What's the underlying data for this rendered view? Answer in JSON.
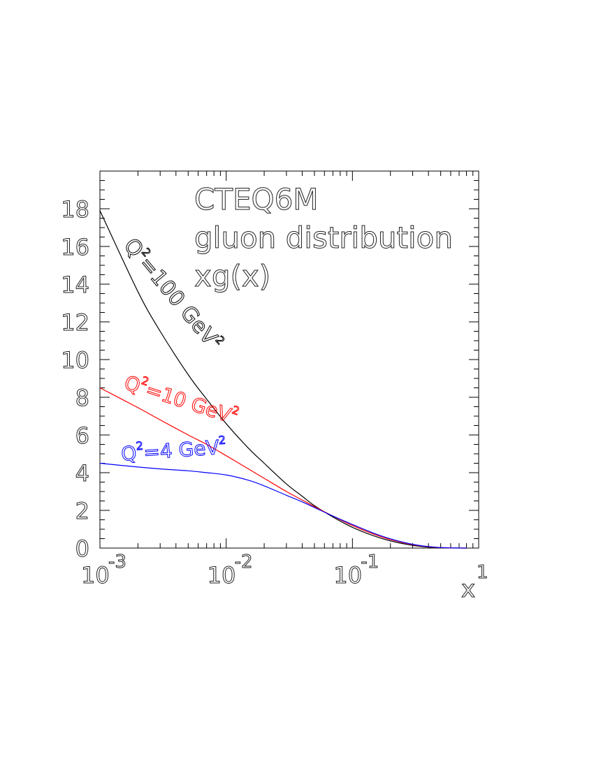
{
  "chart_data": {
    "type": "line",
    "title_lines": [
      "CTEQ6M",
      "gluon distribution",
      "xg(x)"
    ],
    "xlabel": "x",
    "ylabel": "",
    "x_scale": "log",
    "xlim": [
      0.001,
      1
    ],
    "ylim": [
      0,
      20
    ],
    "grid": false,
    "legend": "none",
    "x_tick_labels": [
      {
        "x": 0.001,
        "base": "10",
        "exp": "-3"
      },
      {
        "x": 0.01,
        "base": "10",
        "exp": "-2"
      },
      {
        "x": 0.1,
        "base": "10",
        "exp": "-1"
      },
      {
        "x": 1,
        "base": "",
        "exp": "1"
      }
    ],
    "y_tick_labels": [
      "0",
      "2",
      "4",
      "6",
      "8",
      "10",
      "12",
      "14",
      "16",
      "18"
    ],
    "series": [
      {
        "label_main": "Q",
        "label_sup": "2",
        "label_rest": "=100 GeV",
        "label_sup2": "2",
        "color": "#000000",
        "x": [
          0.001,
          0.002,
          0.003,
          0.005,
          0.007,
          0.01,
          0.015,
          0.02,
          0.03,
          0.04,
          0.05,
          0.07,
          0.1,
          0.15,
          0.2,
          0.3,
          0.4,
          0.5,
          0.6,
          0.7,
          0.8
        ],
        "y": [
          17.9,
          13.6,
          11.5,
          9.2,
          7.9,
          6.6,
          5.3,
          4.5,
          3.4,
          2.75,
          2.25,
          1.65,
          1.1,
          0.63,
          0.38,
          0.14,
          0.05,
          0.017,
          0.005,
          0.001,
          0.0
        ]
      },
      {
        "label_main": "Q",
        "label_sup": "2",
        "label_rest": "=10 GeV",
        "label_sup2": "2",
        "color": "#ff0000",
        "x": [
          0.001,
          0.002,
          0.003,
          0.005,
          0.007,
          0.01,
          0.015,
          0.02,
          0.03,
          0.04,
          0.05,
          0.07,
          0.1,
          0.15,
          0.2,
          0.3,
          0.4,
          0.5,
          0.6,
          0.7,
          0.8
        ],
        "y": [
          8.5,
          7.45,
          6.8,
          6.0,
          5.5,
          4.9,
          4.2,
          3.7,
          3.0,
          2.55,
          2.2,
          1.7,
          1.2,
          0.72,
          0.45,
          0.18,
          0.07,
          0.025,
          0.008,
          0.002,
          0.0
        ]
      },
      {
        "label_main": "Q",
        "label_sup": "2",
        "label_rest": "=4 GeV",
        "label_sup2": "2",
        "color": "#0000ff",
        "x": [
          0.001,
          0.002,
          0.003,
          0.005,
          0.007,
          0.01,
          0.015,
          0.02,
          0.03,
          0.04,
          0.05,
          0.07,
          0.1,
          0.15,
          0.2,
          0.3,
          0.4,
          0.5,
          0.6,
          0.7,
          0.8
        ],
        "y": [
          4.5,
          4.3,
          4.2,
          4.1,
          4.0,
          3.88,
          3.6,
          3.3,
          2.8,
          2.45,
          2.15,
          1.7,
          1.25,
          0.77,
          0.49,
          0.2,
          0.08,
          0.03,
          0.01,
          0.003,
          0.0
        ]
      }
    ]
  }
}
